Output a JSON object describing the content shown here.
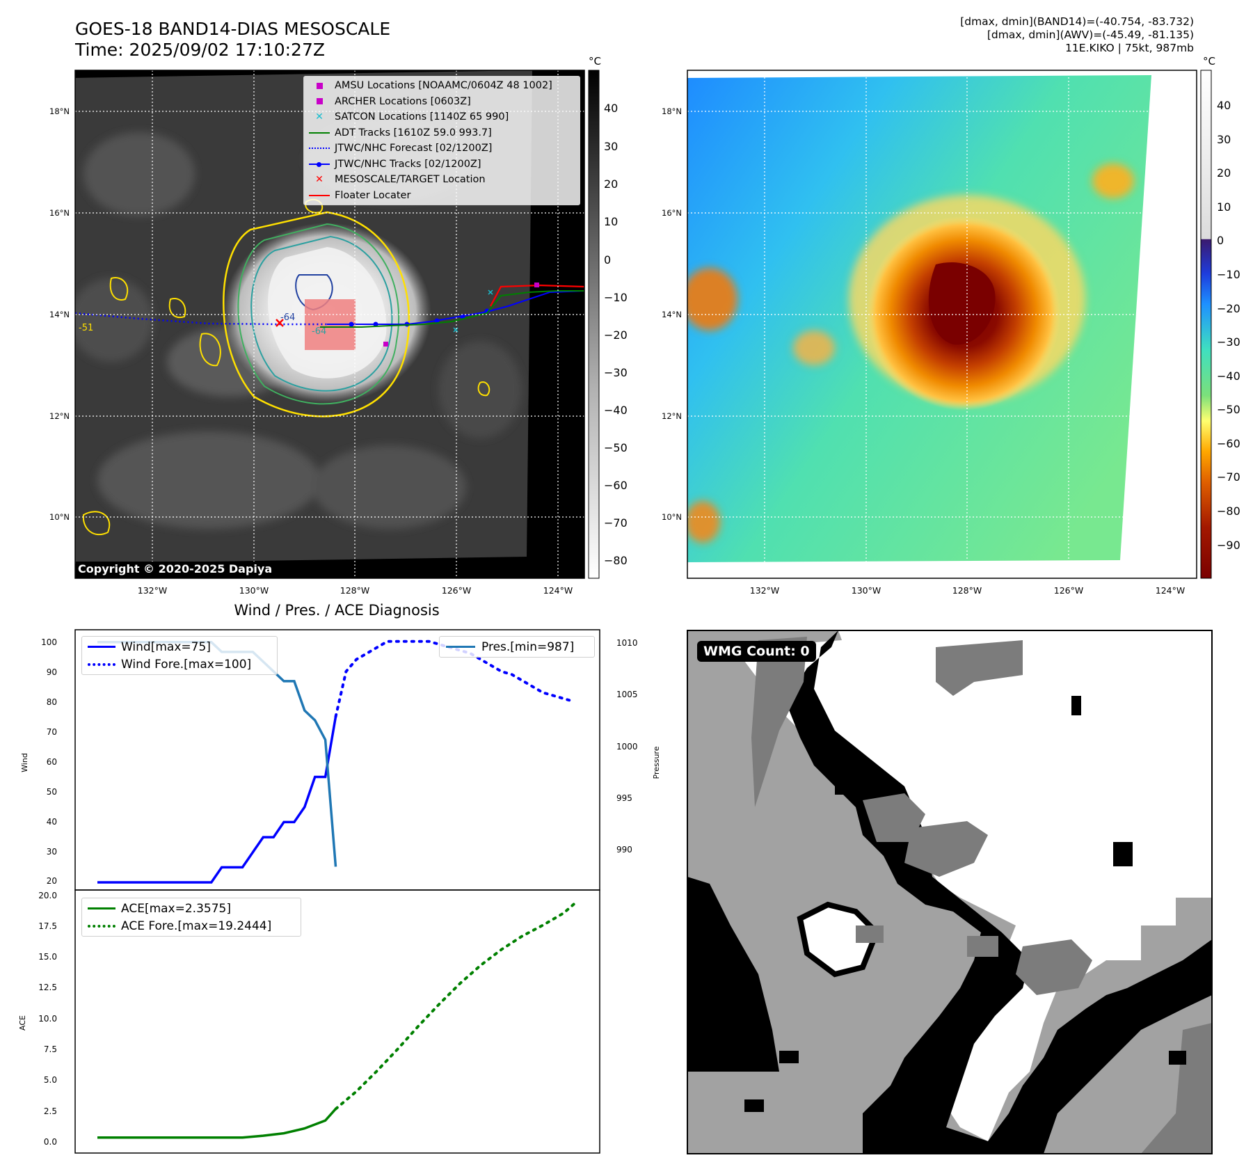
{
  "header": {
    "title_line1": "GOES-18 BAND14-DIAS MESOSCALE",
    "title_line2": "Time: 2025/09/02 17:10:27Z",
    "info_line1": "[dmax, dmin](BAND14)=(-40.754, -83.732)",
    "info_line2": "[dmax, dmin](AWV)=(-45.49, -81.135)",
    "info_line3": "11E.KIKO | 75kt, 987mb"
  },
  "map": {
    "lon_labels": [
      "132°W",
      "130°W",
      "128°W",
      "126°W",
      "124°W"
    ],
    "lat_labels": [
      "18°N",
      "16°N",
      "14°N",
      "12°N",
      "10°N"
    ],
    "copyright": "Copyright © 2020-2025 Dapiya",
    "contour_labels": [
      "-64",
      "-64",
      "-51"
    ],
    "legend": [
      {
        "label": "AMSU Locations [NOAAMC/0604Z 48 1002]",
        "symbol": "square",
        "color": "#c800c8"
      },
      {
        "label": "ARCHER Locations [0603Z]",
        "symbol": "square",
        "color": "#c800c8"
      },
      {
        "label": "SATCON Locations [1140Z 65 990]",
        "symbol": "x",
        "color": "#17becf"
      },
      {
        "label": "ADT Tracks [1610Z 59.0 993.7]",
        "symbol": "line",
        "color": "#008000"
      },
      {
        "label": "JTWC/NHC Forecast [02/1200Z]",
        "symbol": "dotted",
        "color": "#0000ff"
      },
      {
        "label": "JTWC/NHC Tracks [02/1200Z]",
        "symbol": "line-dot",
        "color": "#0000ff"
      },
      {
        "label": "MESOSCALE/TARGET Location",
        "symbol": "x",
        "color": "#ff0000"
      },
      {
        "label": "Floater Locater",
        "symbol": "line",
        "color": "#ff0000"
      }
    ]
  },
  "colorbar_ir": {
    "unit": "°C",
    "ticks": [
      "40",
      "30",
      "20",
      "10",
      "0",
      "−10",
      "−20",
      "−30",
      "−40",
      "−50",
      "−60",
      "−70",
      "−80"
    ]
  },
  "colorbar_wv": {
    "unit": "°C",
    "ticks": [
      "40",
      "30",
      "20",
      "10",
      "0",
      "−10",
      "−20",
      "−30",
      "−40",
      "−50",
      "−60",
      "−70",
      "−80",
      "−90"
    ]
  },
  "diag": {
    "title": "Wind / Pres. / ACE Diagnosis",
    "wind_label": "Wind",
    "pres_label": "Pressure",
    "ace_label": "ACE",
    "wind_ticks": [
      "100",
      "90",
      "80",
      "70",
      "60",
      "50",
      "40",
      "30",
      "20"
    ],
    "pres_ticks": [
      "1010",
      "1005",
      "1000",
      "995",
      "990"
    ],
    "ace_ticks": [
      "20.0",
      "17.5",
      "15.0",
      "12.5",
      "10.0",
      "7.5",
      "5.0",
      "2.5",
      "0.0"
    ],
    "legend_wind": "Wind[max=75]",
    "legend_wind_fore": "Wind Fore.[max=100]",
    "legend_pres": "Pres.[min=987]",
    "legend_ace": "ACE[max=2.3575]",
    "legend_ace_fore": "ACE Fore.[max=19.2444]"
  },
  "wmg": {
    "label": "WMG Count: 0"
  },
  "chart_data": [
    {
      "type": "line",
      "title": "Wind / Pres. / ACE Diagnosis",
      "ylabel": "Wind",
      "ylim": [
        20,
        102
      ],
      "series": [
        {
          "name": "Wind[max=75]",
          "x": [
            0,
            1,
            2,
            3,
            4,
            5,
            6,
            7,
            8,
            9,
            10,
            11,
            12,
            13,
            14,
            15,
            16,
            17,
            18,
            19,
            20,
            21,
            22,
            23
          ],
          "values": [
            20,
            20,
            20,
            20,
            20,
            20,
            20,
            20,
            20,
            20,
            20,
            20,
            25,
            25,
            25,
            30,
            35,
            35,
            40,
            40,
            45,
            55,
            55,
            75
          ]
        },
        {
          "name": "Wind Fore.[max=100]",
          "x": [
            23,
            24,
            25,
            26,
            27,
            28,
            29,
            30,
            31,
            32,
            33,
            34,
            35,
            36,
            37,
            38,
            39,
            40,
            41,
            42,
            43,
            44,
            45,
            46
          ],
          "values": [
            75,
            90,
            94,
            96,
            98,
            100,
            100,
            100,
            100,
            100,
            99,
            98,
            97,
            96,
            94,
            92,
            90,
            89,
            87,
            85,
            83,
            82,
            81,
            80
          ]
        }
      ]
    },
    {
      "type": "line",
      "ylabel": "Pressure",
      "ylim": [
        985.4,
        1010.7
      ],
      "series": [
        {
          "name": "Pres.[min=987]",
          "x": [
            0,
            1,
            2,
            3,
            4,
            5,
            6,
            7,
            8,
            9,
            10,
            11,
            12,
            13,
            14,
            15,
            16,
            17,
            18,
            19,
            20,
            21,
            22,
            23
          ],
          "values": [
            1010,
            1010,
            1010,
            1010,
            1010,
            1010,
            1010,
            1010,
            1010,
            1010,
            1010,
            1010,
            1009,
            1009,
            1009,
            1009,
            1008,
            1007,
            1006,
            1006,
            1003,
            1002,
            1000,
            987
          ]
        }
      ]
    },
    {
      "type": "line",
      "ylabel": "ACE",
      "ylim": [
        -0.65,
        20.0
      ],
      "series": [
        {
          "name": "ACE[max=2.3575]",
          "x": [
            0,
            2,
            4,
            6,
            8,
            10,
            12,
            14,
            16,
            18,
            20,
            22,
            23
          ],
          "values": [
            0,
            0,
            0,
            0,
            0,
            0,
            0,
            0,
            0.15,
            0.35,
            0.75,
            1.4,
            2.3575
          ]
        },
        {
          "name": "ACE Fore.[max=19.2444]",
          "x": [
            23,
            25,
            27,
            29,
            31,
            33,
            35,
            37,
            39,
            41,
            43,
            45,
            46
          ],
          "values": [
            2.3575,
            3.8,
            5.5,
            7.3,
            9.2,
            11.0,
            12.7,
            14.2,
            15.5,
            16.6,
            17.5,
            18.5,
            19.2444
          ]
        }
      ]
    }
  ]
}
